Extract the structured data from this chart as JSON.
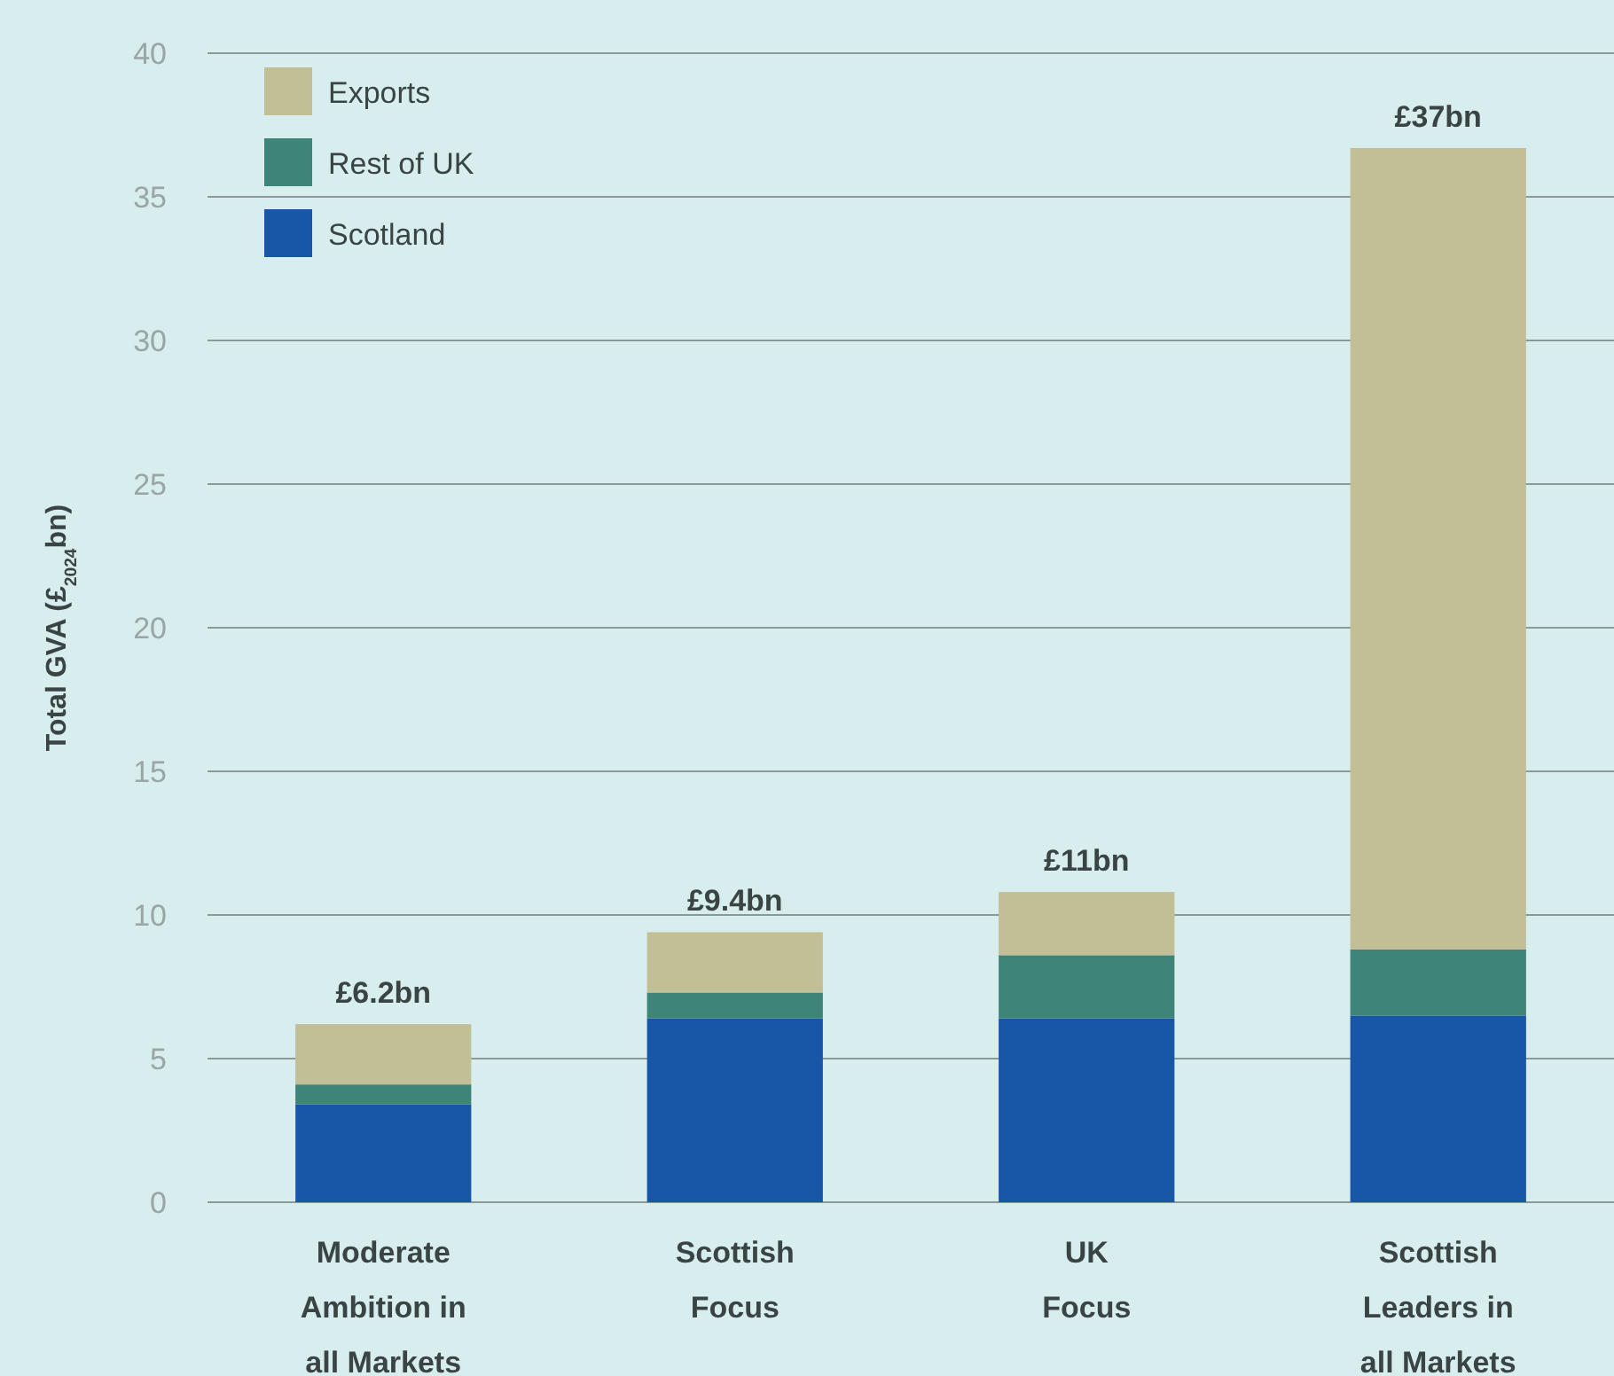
{
  "chart_data": {
    "type": "bar",
    "stacked": true,
    "ylabel": "Total GVA (£$_{2024}$bn)",
    "categories": [
      "Moderate\nAmbition in\nall Markets",
      "Scottish\nFocus",
      "UK\nFocus",
      "Scottish\nLeaders in\nall Markets"
    ],
    "series": [
      {
        "name": "Scotland",
        "color": "#1857a8",
        "values": [
          3.4,
          6.4,
          6.4,
          6.5
        ]
      },
      {
        "name": "Rest of UK",
        "color": "#3f8479",
        "values": [
          0.7,
          0.9,
          2.2,
          2.3
        ]
      },
      {
        "name": "Exports",
        "color": "#c2bf96",
        "values": [
          2.1,
          2.1,
          2.2,
          27.9
        ]
      }
    ],
    "totals": [
      "£6.2bn",
      "£9.4bn",
      "£11bn",
      "£37bn"
    ],
    "ylim": [
      0,
      40
    ],
    "yticks": [
      0,
      5,
      10,
      15,
      20,
      25,
      30,
      35,
      40
    ],
    "grid": "y",
    "legend": "top left"
  }
}
